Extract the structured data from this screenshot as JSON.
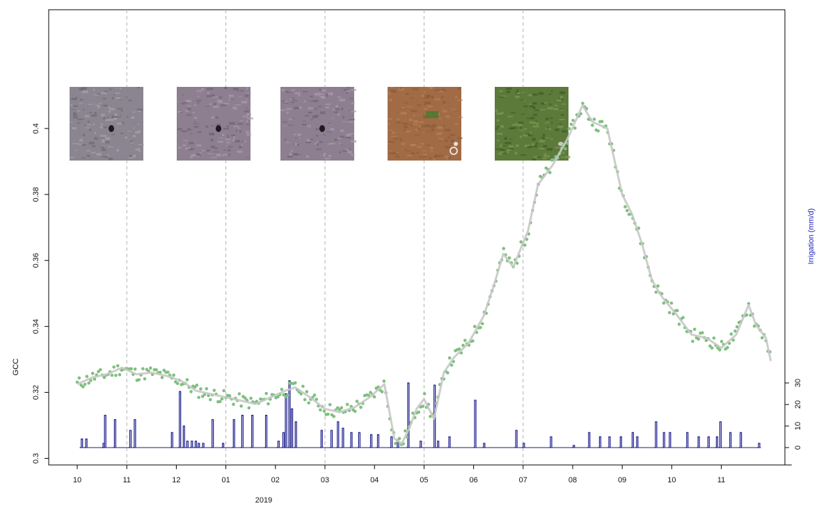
{
  "chart_data": {
    "type": "line",
    "title": "",
    "xlabel": "2019",
    "ylabel": "GCC",
    "ylabel_right": "Irrigation (mm/d)",
    "x_tick_labels": [
      "10",
      "11",
      "12",
      "01",
      "02",
      "03",
      "04",
      "05",
      "06",
      "07",
      "08",
      "09",
      "10",
      "11"
    ],
    "x_axis_range_months": [
      0,
      14
    ],
    "vertical_guides_at_month_index": [
      1,
      3,
      5,
      7,
      9
    ],
    "ylim": [
      0.298,
      0.436
    ],
    "yticks": [
      0.3,
      0.32,
      0.34,
      0.36,
      0.38,
      0.4
    ],
    "ytick_labels": [
      "0.3",
      "0.32",
      "0.34",
      "0.36",
      "0.38",
      "0.4"
    ],
    "y2lim": [
      0,
      30
    ],
    "y2ticks": [
      0,
      10,
      20,
      30
    ],
    "y2tick_labels": [
      "0",
      "10",
      "20",
      "30"
    ],
    "grid": false,
    "colors": {
      "points": "#7fbf7f",
      "smooth": "#c8c8c8",
      "irrigation": "#1a1a8c",
      "guides": "#b0b0b0"
    },
    "gcc_smooth_series": {
      "x": [
        0.0,
        0.3,
        0.6,
        0.9,
        1.2,
        1.5,
        1.8,
        2.1,
        2.4,
        2.7,
        3.0,
        3.3,
        3.6,
        3.9,
        4.2,
        4.4,
        4.7,
        5.0,
        5.3,
        5.6,
        5.9,
        6.2,
        6.4,
        6.55,
        6.7,
        6.85,
        7.0,
        7.2,
        7.4,
        7.6,
        7.9,
        8.2,
        8.4,
        8.6,
        8.8,
        9.1,
        9.3,
        9.6,
        9.9,
        10.2,
        10.4,
        10.7,
        11.0,
        11.2,
        11.4,
        11.6,
        11.8,
        12.1,
        12.4,
        12.7,
        13.0,
        13.3,
        13.55,
        13.7,
        13.8
      ],
      "y": [
        0.3225,
        0.3245,
        0.3255,
        0.3275,
        0.3255,
        0.326,
        0.325,
        0.3235,
        0.3205,
        0.3195,
        0.3185,
        0.3175,
        0.3165,
        0.3185,
        0.3205,
        0.3215,
        0.3185,
        0.315,
        0.314,
        0.3155,
        0.3185,
        0.3225,
        0.306,
        0.3045,
        0.309,
        0.315,
        0.318,
        0.312,
        0.326,
        0.3305,
        0.335,
        0.343,
        0.352,
        0.362,
        0.358,
        0.369,
        0.383,
        0.389,
        0.397,
        0.407,
        0.402,
        0.4,
        0.38,
        0.374,
        0.365,
        0.354,
        0.349,
        0.3435,
        0.3375,
        0.3365,
        0.3335,
        0.3375,
        0.3465,
        0.3405,
        0.3385
      ],
      "x_tail": [
        13.9,
        14.0
      ],
      "y_tail": [
        0.3365,
        0.3295
      ]
    },
    "gcc_point_count": 360,
    "irrigation_events": [
      {
        "x": 0.08,
        "v": 4
      },
      {
        "x": 0.17,
        "v": 4
      },
      {
        "x": 0.52,
        "v": 2
      },
      {
        "x": 0.55,
        "v": 15
      },
      {
        "x": 0.75,
        "v": 13
      },
      {
        "x": 1.06,
        "v": 8
      },
      {
        "x": 1.15,
        "v": 13
      },
      {
        "x": 1.9,
        "v": 7
      },
      {
        "x": 2.06,
        "v": 26
      },
      {
        "x": 2.14,
        "v": 10
      },
      {
        "x": 2.21,
        "v": 3
      },
      {
        "x": 2.3,
        "v": 3
      },
      {
        "x": 2.38,
        "v": 3
      },
      {
        "x": 2.44,
        "v": 2
      },
      {
        "x": 2.53,
        "v": 2
      },
      {
        "x": 2.72,
        "v": 13
      },
      {
        "x": 2.93,
        "v": 2
      },
      {
        "x": 3.15,
        "v": 13
      },
      {
        "x": 3.32,
        "v": 15
      },
      {
        "x": 3.52,
        "v": 15
      },
      {
        "x": 3.8,
        "v": 15
      },
      {
        "x": 4.05,
        "v": 3
      },
      {
        "x": 4.15,
        "v": 7
      },
      {
        "x": 4.2,
        "v": 25
      },
      {
        "x": 4.27,
        "v": 31
      },
      {
        "x": 4.32,
        "v": 18
      },
      {
        "x": 4.4,
        "v": 12
      },
      {
        "x": 4.92,
        "v": 8
      },
      {
        "x": 5.12,
        "v": 8
      },
      {
        "x": 5.25,
        "v": 12
      },
      {
        "x": 5.35,
        "v": 9
      },
      {
        "x": 5.52,
        "v": 7
      },
      {
        "x": 5.68,
        "v": 7
      },
      {
        "x": 5.92,
        "v": 6
      },
      {
        "x": 6.06,
        "v": 6
      },
      {
        "x": 6.33,
        "v": 5
      },
      {
        "x": 6.46,
        "v": 3
      },
      {
        "x": 6.67,
        "v": 30
      },
      {
        "x": 6.92,
        "v": 3
      },
      {
        "x": 7.2,
        "v": 29
      },
      {
        "x": 7.27,
        "v": 3
      },
      {
        "x": 7.5,
        "v": 5
      },
      {
        "x": 8.02,
        "v": 22
      },
      {
        "x": 8.2,
        "v": 2
      },
      {
        "x": 8.85,
        "v": 8
      },
      {
        "x": 9.0,
        "v": 2
      },
      {
        "x": 9.55,
        "v": 5
      },
      {
        "x": 10.01,
        "v": 1
      },
      {
        "x": 10.32,
        "v": 7
      },
      {
        "x": 10.54,
        "v": 5
      },
      {
        "x": 10.73,
        "v": 5
      },
      {
        "x": 10.96,
        "v": 5
      },
      {
        "x": 11.2,
        "v": 7
      },
      {
        "x": 11.29,
        "v": 5
      },
      {
        "x": 11.67,
        "v": 12
      },
      {
        "x": 11.83,
        "v": 7
      },
      {
        "x": 11.95,
        "v": 7
      },
      {
        "x": 12.3,
        "v": 7
      },
      {
        "x": 12.53,
        "v": 5
      },
      {
        "x": 12.73,
        "v": 5
      },
      {
        "x": 12.9,
        "v": 5
      },
      {
        "x": 12.97,
        "v": 12
      },
      {
        "x": 13.17,
        "v": 7
      },
      {
        "x": 13.38,
        "v": 7
      },
      {
        "x": 13.75,
        "v": 2
      }
    ],
    "photo_thumbnails": [
      {
        "id": "nov",
        "tone": "dry-grey"
      },
      {
        "id": "jan",
        "tone": "dry-grey-purple"
      },
      {
        "id": "mar",
        "tone": "dry-grey-purple"
      },
      {
        "id": "may",
        "tone": "bare-soil"
      },
      {
        "id": "jul",
        "tone": "green-grass"
      }
    ]
  }
}
